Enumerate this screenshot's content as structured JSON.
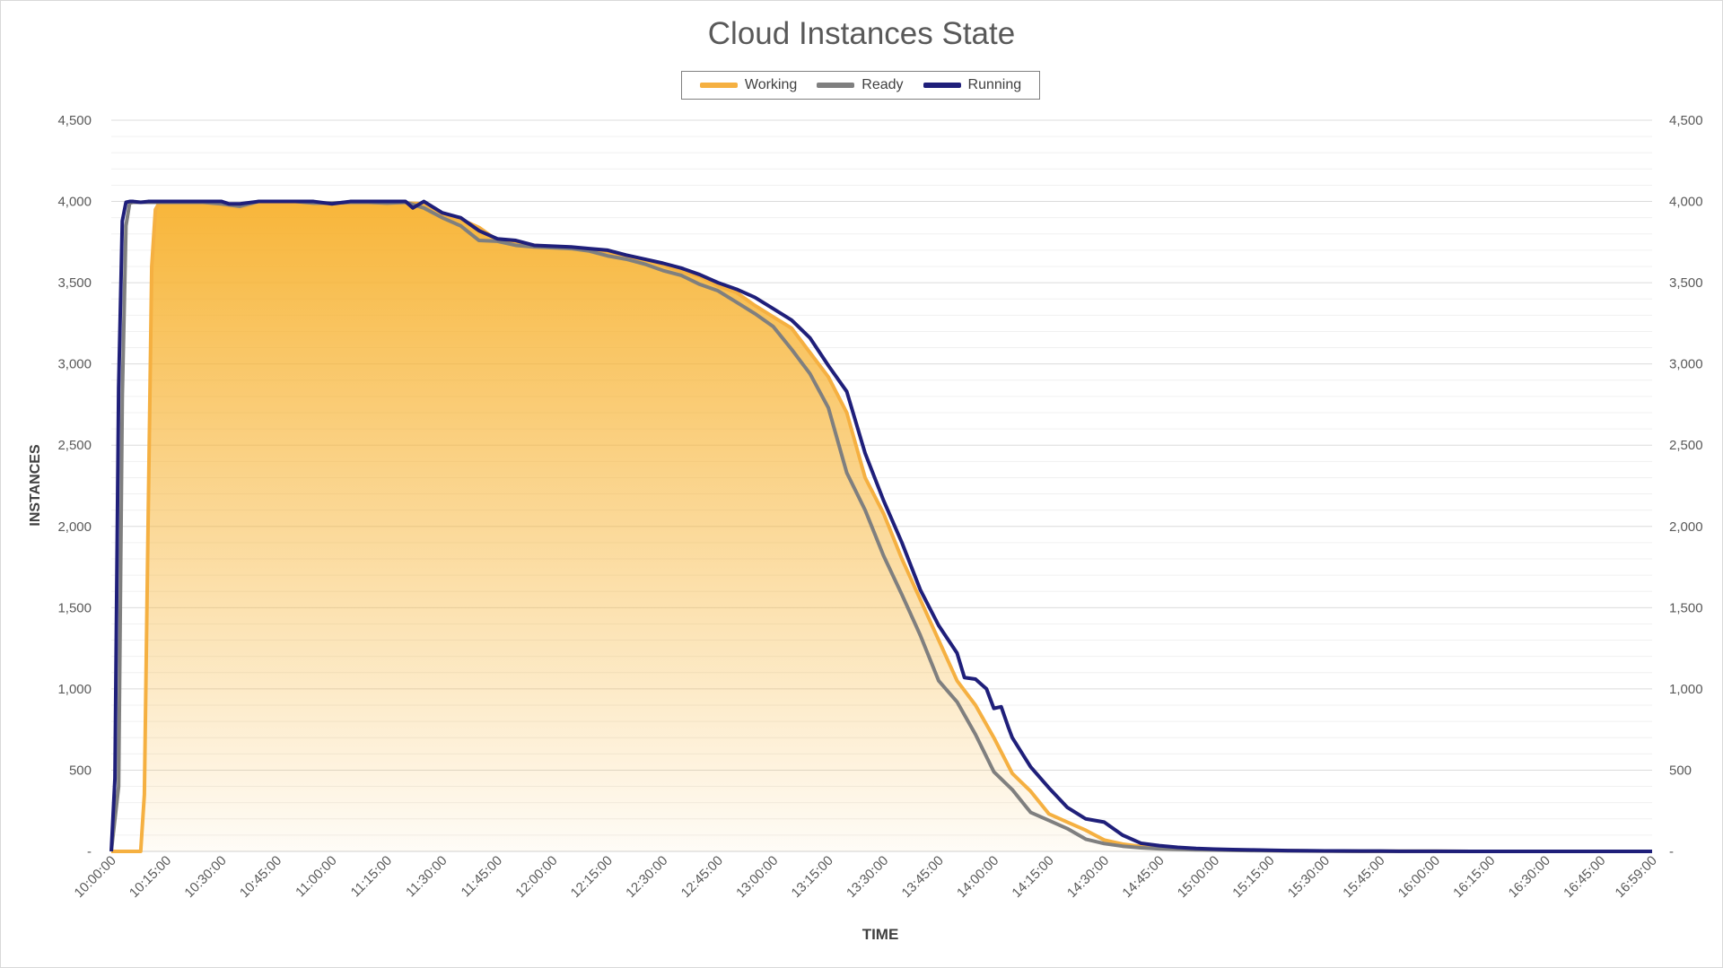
{
  "chart_data": {
    "type": "area",
    "title": "Cloud Instances State",
    "xlabel": "TIME",
    "ylabel": "INSTANCES",
    "ylim": [
      0,
      4500
    ],
    "y_ticks": [
      0,
      500,
      1000,
      1500,
      2000,
      2500,
      3000,
      3500,
      4000,
      4500
    ],
    "y_tick_labels": [
      "-",
      "500",
      "1,000",
      "1,500",
      "2,000",
      "2,500",
      "3,000",
      "3,500",
      "4,000",
      "4,500"
    ],
    "x_tick_labels": [
      "10:00:00",
      "10:15:00",
      "10:30:00",
      "10:45:00",
      "11:00:00",
      "11:15:00",
      "11:30:00",
      "11:45:00",
      "12:00:00",
      "12:15:00",
      "12:30:00",
      "12:45:00",
      "13:00:00",
      "13:15:00",
      "13:30:00",
      "13:45:00",
      "14:00:00",
      "14:15:00",
      "14:30:00",
      "14:45:00",
      "15:00:00",
      "15:15:00",
      "15:30:00",
      "15:45:00",
      "16:00:00",
      "16:15:00",
      "16:30:00",
      "16:45:00",
      "16:59:00"
    ],
    "x_unit": "minutes after 10:00:00",
    "grid": true,
    "secondary_y_axis": true,
    "legend": "top-center",
    "series": [
      {
        "name": "Working",
        "color": "#f5b041",
        "x": [
          0,
          8,
          9,
          10,
          11,
          12,
          13,
          15,
          20,
          25,
          30,
          35,
          40,
          45,
          50,
          55,
          60,
          65,
          70,
          75,
          80,
          85,
          90,
          95,
          100,
          105,
          110,
          115,
          120,
          125,
          130,
          135,
          140,
          145,
          150,
          155,
          160,
          165,
          170,
          175,
          180,
          185,
          190,
          195,
          200,
          205,
          210,
          215,
          220,
          225,
          230,
          235,
          240,
          245,
          250,
          255,
          260,
          265,
          270,
          275,
          280,
          285,
          290,
          295,
          300,
          305,
          310,
          315,
          320,
          325,
          330,
          335,
          340,
          345,
          350,
          355,
          360,
          370,
          380,
          390,
          400,
          410,
          419
        ],
        "values": [
          0,
          0,
          350,
          2000,
          3600,
          3950,
          3990,
          3990,
          3990,
          3990,
          3980,
          3960,
          3995,
          3995,
          3995,
          3990,
          3985,
          3990,
          3990,
          3985,
          3990,
          3985,
          3920,
          3890,
          3840,
          3760,
          3750,
          3730,
          3720,
          3710,
          3705,
          3690,
          3660,
          3640,
          3610,
          3570,
          3540,
          3480,
          3440,
          3360,
          3290,
          3220,
          3070,
          2920,
          2700,
          2300,
          2080,
          1800,
          1550,
          1300,
          1050,
          900,
          700,
          480,
          370,
          230,
          180,
          130,
          70,
          45,
          30,
          20,
          15,
          12,
          10,
          8,
          6,
          5,
          4,
          3,
          2,
          2,
          1,
          1,
          1,
          1,
          1,
          0,
          0,
          0,
          0,
          0,
          0
        ]
      },
      {
        "name": "Ready",
        "color": "#7f7f7f",
        "x": [
          0,
          2,
          3,
          4,
          5,
          6,
          8,
          10,
          15,
          20,
          25,
          30,
          35,
          40,
          45,
          50,
          55,
          60,
          65,
          70,
          75,
          80,
          85,
          90,
          95,
          100,
          105,
          110,
          115,
          120,
          125,
          130,
          135,
          140,
          145,
          150,
          155,
          160,
          165,
          170,
          175,
          180,
          185,
          190,
          195,
          200,
          205,
          210,
          215,
          220,
          225,
          230,
          235,
          240,
          245,
          250,
          255,
          260,
          265,
          270,
          275,
          280,
          285,
          290,
          295,
          300,
          305,
          310,
          315,
          320,
          325,
          330,
          335,
          340,
          345,
          350,
          355,
          360,
          370,
          380,
          390,
          400,
          410,
          419
        ],
        "values": [
          0,
          400,
          2800,
          3850,
          3990,
          3995,
          3995,
          3995,
          3995,
          3995,
          3995,
          3985,
          3970,
          4000,
          4000,
          4000,
          3990,
          3990,
          3995,
          3995,
          3990,
          3995,
          3960,
          3900,
          3850,
          3760,
          3755,
          3730,
          3720,
          3715,
          3710,
          3695,
          3665,
          3645,
          3615,
          3575,
          3545,
          3490,
          3450,
          3380,
          3310,
          3230,
          3090,
          2940,
          2730,
          2330,
          2100,
          1820,
          1580,
          1330,
          1050,
          920,
          720,
          490,
          380,
          240,
          190,
          140,
          75,
          48,
          32,
          22,
          16,
          13,
          10,
          8,
          6,
          5,
          4,
          3,
          2,
          2,
          1,
          1,
          1,
          1,
          1,
          1,
          0,
          0,
          0,
          0,
          0,
          0
        ]
      },
      {
        "name": "Running",
        "color": "#1f1f7a",
        "x": [
          0,
          1,
          2,
          3,
          4,
          5,
          6,
          8,
          10,
          15,
          20,
          25,
          30,
          32,
          35,
          40,
          45,
          50,
          55,
          60,
          65,
          70,
          75,
          80,
          82,
          85,
          90,
          95,
          100,
          105,
          110,
          115,
          120,
          125,
          130,
          135,
          140,
          145,
          150,
          155,
          160,
          165,
          170,
          175,
          180,
          185,
          190,
          195,
          200,
          205,
          210,
          215,
          220,
          225,
          230,
          232,
          235,
          238,
          240,
          242,
          244,
          245,
          250,
          255,
          260,
          265,
          270,
          275,
          280,
          285,
          290,
          295,
          300,
          305,
          310,
          315,
          320,
          325,
          330,
          335,
          340,
          345,
          350,
          355,
          360,
          370,
          380,
          390,
          400,
          410,
          419
        ],
        "values": [
          0,
          450,
          2850,
          3880,
          3995,
          4000,
          4000,
          3995,
          4000,
          4000,
          4000,
          4000,
          4000,
          3985,
          3985,
          4000,
          4000,
          4000,
          4000,
          3985,
          4000,
          4000,
          4000,
          4000,
          3960,
          4000,
          3930,
          3900,
          3820,
          3770,
          3760,
          3730,
          3725,
          3720,
          3710,
          3700,
          3670,
          3645,
          3620,
          3590,
          3550,
          3500,
          3460,
          3410,
          3340,
          3270,
          3160,
          2990,
          2830,
          2450,
          2160,
          1900,
          1610,
          1390,
          1220,
          1070,
          1060,
          1000,
          880,
          890,
          760,
          700,
          520,
          390,
          270,
          200,
          180,
          100,
          50,
          35,
          25,
          18,
          14,
          11,
          9,
          7,
          5,
          4,
          3,
          3,
          2,
          2,
          1,
          1,
          1,
          0,
          0,
          0,
          0,
          0,
          0
        ]
      }
    ]
  }
}
